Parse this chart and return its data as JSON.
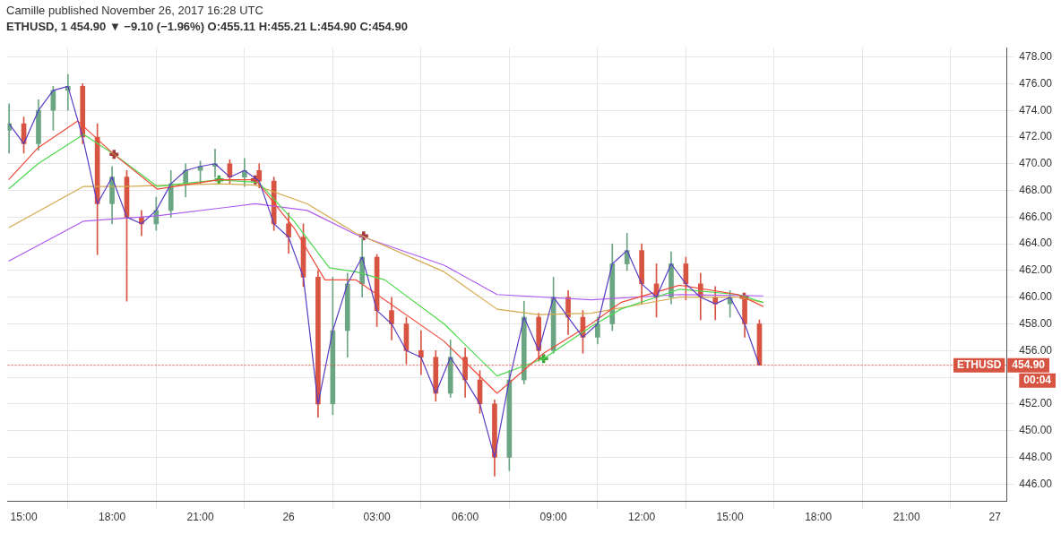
{
  "chart_data": {
    "type": "candlestick",
    "title": "Camille published November 26, 2017 16:28 UTC",
    "subtitle": "ETHUSD, 1  454.90 ▼ −9.10 (−1.96%) O:455.11 H:455.21 L:454.90 C:454.90",
    "x": [
      "2017-11-25T14:30",
      "2017-11-25T15:00",
      "2017-11-25T15:30",
      "2017-11-25T16:00",
      "2017-11-25T16:30",
      "2017-11-25T17:00",
      "2017-11-25T17:30",
      "2017-11-25T18:00",
      "2017-11-25T18:30",
      "2017-11-25T19:00",
      "2017-11-25T19:30",
      "2017-11-25T20:00",
      "2017-11-25T20:30",
      "2017-11-25T21:00",
      "2017-11-25T21:30",
      "2017-11-25T22:00",
      "2017-11-25T22:30",
      "2017-11-25T23:00",
      "2017-11-25T23:30",
      "2017-11-26T00:00",
      "2017-11-26T00:30",
      "2017-11-26T01:00",
      "2017-11-26T01:30",
      "2017-11-26T02:00",
      "2017-11-26T02:30",
      "2017-11-26T03:00",
      "2017-11-26T03:30",
      "2017-11-26T04:00",
      "2017-11-26T04:30",
      "2017-11-26T05:00",
      "2017-11-26T05:30",
      "2017-11-26T06:00",
      "2017-11-26T06:30",
      "2017-11-26T07:00",
      "2017-11-26T07:30",
      "2017-11-26T08:00",
      "2017-11-26T08:30",
      "2017-11-26T09:00",
      "2017-11-26T09:30",
      "2017-11-26T10:00",
      "2017-11-26T10:30",
      "2017-11-26T11:00",
      "2017-11-26T11:30",
      "2017-11-26T12:00",
      "2017-11-26T12:30",
      "2017-11-26T13:00",
      "2017-11-26T13:30",
      "2017-11-26T14:00",
      "2017-11-26T14:30",
      "2017-11-26T15:00",
      "2017-11-26T15:30",
      "2017-11-26T16:00"
    ],
    "ohlc": [
      [
        472.5,
        474.5,
        470.8,
        473
      ],
      [
        473,
        473.5,
        470.8,
        471.5
      ],
      [
        471.5,
        474.8,
        471,
        474
      ],
      [
        474,
        475.8,
        472.5,
        475.5
      ],
      [
        475.5,
        476.7,
        474,
        475.8
      ],
      [
        475.8,
        476,
        471.5,
        472
      ],
      [
        472,
        473,
        463.2,
        467
      ],
      [
        467,
        469.8,
        465.5,
        469
      ],
      [
        469,
        469.5,
        459.7,
        466
      ],
      [
        466,
        466.5,
        464.6,
        465.5
      ],
      [
        465.5,
        467.5,
        465,
        466.5
      ],
      [
        466.5,
        469.5,
        466,
        468.5
      ],
      [
        468.5,
        470,
        467.5,
        469.5
      ],
      [
        469.5,
        470.2,
        468.5,
        469.8
      ],
      [
        469.8,
        471.1,
        469,
        470
      ],
      [
        470,
        470.3,
        468.5,
        469
      ],
      [
        469,
        470.4,
        468.3,
        469.5
      ],
      [
        469.5,
        470,
        468.2,
        468.7
      ],
      [
        468.7,
        469,
        465,
        465.5
      ],
      [
        465.5,
        466.3,
        463.3,
        464.5
      ],
      [
        464.5,
        465.5,
        460.8,
        461.5
      ],
      [
        461.5,
        462,
        451,
        452
      ],
      [
        452,
        461.5,
        451.2,
        457.5
      ],
      [
        457.5,
        461.8,
        455.5,
        461
      ],
      [
        461,
        464.4,
        460,
        463
      ],
      [
        463,
        463.2,
        457.8,
        459
      ],
      [
        459,
        460,
        456.8,
        458
      ],
      [
        458,
        458.5,
        455,
        456
      ],
      [
        456,
        457.5,
        454.2,
        455.5
      ],
      [
        455.5,
        456,
        452.2,
        452.8
      ],
      [
        452.8,
        456.8,
        452.5,
        455.5
      ],
      [
        455.5,
        456.2,
        452.5,
        453.8
      ],
      [
        453.8,
        454.5,
        451.3,
        452
      ],
      [
        452,
        452.3,
        446.6,
        448
      ],
      [
        448,
        454.5,
        447,
        453.8
      ],
      [
        453.8,
        459.7,
        453.5,
        458.5
      ],
      [
        458.5,
        458.8,
        455.2,
        456
      ],
      [
        456,
        461.5,
        455.8,
        460
      ],
      [
        460,
        460.5,
        457.2,
        458.5
      ],
      [
        458.5,
        459,
        455.8,
        457
      ],
      [
        457,
        458.5,
        456.5,
        458
      ],
      [
        458,
        464,
        457.5,
        462.5
      ],
      [
        462.5,
        464.8,
        462,
        463.5
      ],
      [
        463.5,
        464,
        459.5,
        461
      ],
      [
        461,
        462.5,
        458.5,
        460
      ],
      [
        460,
        463.4,
        459.5,
        462.5
      ],
      [
        462.5,
        463,
        459.8,
        461
      ],
      [
        461,
        461.8,
        458.3,
        460
      ],
      [
        460,
        460.8,
        458.3,
        459.5
      ],
      [
        459.5,
        460.5,
        458.5,
        460
      ],
      [
        460,
        460.3,
        457,
        458
      ],
      [
        458,
        458.3,
        454.9,
        454.9
      ]
    ],
    "colors": [
      "#6ba583",
      "#d75442",
      "#6ba583",
      "#6ba583",
      "#6ba583",
      "#d75442",
      "#d75442",
      "#6ba583",
      "#d75442",
      "#d75442",
      "#6ba583",
      "#6ba583",
      "#6ba583",
      "#6ba583",
      "#6ba583",
      "#d75442",
      "#6ba583",
      "#d75442",
      "#d75442",
      "#d75442",
      "#d75442",
      "#d75442",
      "#6ba583",
      "#6ba583",
      "#6ba583",
      "#d75442",
      "#d75442",
      "#d75442",
      "#d75442",
      "#d75442",
      "#6ba583",
      "#d75442",
      "#d75442",
      "#d75442",
      "#6ba583",
      "#6ba583",
      "#d75442",
      "#6ba583",
      "#d75442",
      "#d75442",
      "#6ba583",
      "#6ba583",
      "#6ba583",
      "#d75442",
      "#d75442",
      "#6ba583",
      "#d75442",
      "#d75442",
      "#d75442",
      "#6ba583",
      "#d75442",
      "#d75442"
    ],
    "series": [
      {
        "type": "line",
        "color": "#5b3cc4",
        "x": [
          "2017-11-25T14:30",
          "2017-11-25T15:00",
          "2017-11-25T15:30",
          "2017-11-25T16:00",
          "2017-11-25T16:30",
          "2017-11-25T17:00",
          "2017-11-25T17:30",
          "2017-11-25T18:00",
          "2017-11-25T18:30",
          "2017-11-25T19:00",
          "2017-11-25T19:30",
          "2017-11-25T20:00",
          "2017-11-25T20:30",
          "2017-11-25T21:00",
          "2017-11-25T21:30",
          "2017-11-25T22:00",
          "2017-11-25T22:30",
          "2017-11-25T23:00",
          "2017-11-25T23:30",
          "2017-11-26T00:00",
          "2017-11-26T00:30",
          "2017-11-26T01:00",
          "2017-11-26T01:30",
          "2017-11-26T02:00",
          "2017-11-26T02:30",
          "2017-11-26T03:00",
          "2017-11-26T03:30",
          "2017-11-26T04:00",
          "2017-11-26T04:30",
          "2017-11-26T05:00",
          "2017-11-26T05:30",
          "2017-11-26T06:00",
          "2017-11-26T06:30",
          "2017-11-26T07:00",
          "2017-11-26T07:30",
          "2017-11-26T08:00",
          "2017-11-26T08:30",
          "2017-11-26T09:00",
          "2017-11-26T09:30",
          "2017-11-26T10:00",
          "2017-11-26T10:30",
          "2017-11-26T11:00",
          "2017-11-26T11:30",
          "2017-11-26T12:00",
          "2017-11-26T12:30",
          "2017-11-26T13:00",
          "2017-11-26T13:30",
          "2017-11-26T14:00",
          "2017-11-26T14:30",
          "2017-11-26T15:00",
          "2017-11-26T15:30",
          "2017-11-26T16:00"
        ],
        "values": [
          473,
          471.5,
          474,
          475.5,
          475.8,
          472,
          467,
          469,
          466,
          465.5,
          466.5,
          468.5,
          469.5,
          469.8,
          470,
          469,
          469.5,
          468.7,
          465.5,
          464.5,
          461.5,
          452,
          457.5,
          461,
          463,
          459,
          458,
          456,
          455.5,
          452.8,
          455.5,
          453.8,
          452,
          448,
          453.8,
          458.5,
          456,
          460,
          458.5,
          457,
          458,
          462.5,
          463.5,
          461,
          460,
          462.5,
          461,
          460,
          459.5,
          460,
          458,
          454.9
        ]
      },
      {
        "type": "line",
        "color": "#f04a3a",
        "x": [
          "2017-11-25T14:29",
          "2017-11-25T15:29",
          "2017-11-25T16:50",
          "2017-11-25T18:04",
          "2017-11-25T19:32",
          "2017-11-25T21:38",
          "2017-11-25T22:52",
          "2017-11-26T00:11",
          "2017-11-26T01:14",
          "2017-11-26T02:17",
          "2017-11-26T05:17",
          "2017-11-26T07:05",
          "2017-11-26T08:40",
          "2017-11-26T10:17",
          "2017-11-26T11:17",
          "2017-11-26T13:17",
          "2017-11-26T15:16",
          "2017-11-26T16:08"
        ],
        "values": [
          468.8,
          471.2,
          473.2,
          470.7,
          468.1,
          468.8,
          468.8,
          465.2,
          461.3,
          461.3,
          456.7,
          452.8,
          455.8,
          458,
          459.6,
          460.9,
          460.2,
          459.3
        ]
      },
      {
        "type": "line",
        "color": "#4cd84c",
        "x": [
          "2017-11-25T14:29",
          "2017-11-25T15:29",
          "2017-11-25T17:02",
          "2017-11-25T18:04",
          "2017-11-25T19:32",
          "2017-11-25T21:38",
          "2017-11-25T22:59",
          "2017-11-26T00:11",
          "2017-11-26T01:23",
          "2017-11-26T02:17",
          "2017-11-26T03:16",
          "2017-11-26T05:17",
          "2017-11-26T07:05",
          "2017-11-26T08:40",
          "2017-11-26T10:17",
          "2017-11-26T11:17",
          "2017-11-26T13:17",
          "2017-11-26T15:16",
          "2017-11-26T16:08"
        ],
        "values": [
          468.1,
          470,
          472.2,
          470.7,
          468.3,
          468.8,
          468.6,
          465.7,
          462.2,
          461.9,
          461.3,
          458,
          454.1,
          455.4,
          457.8,
          459.1,
          460.6,
          460.2,
          459.6
        ]
      },
      {
        "type": "line",
        "color": "#d4a94e",
        "x": [
          "2017-11-25T14:29",
          "2017-11-25T17:02",
          "2017-11-25T18:29",
          "2017-11-25T21:38",
          "2017-11-25T22:52",
          "2017-11-26T00:38",
          "2017-11-26T02:17",
          "2017-11-26T05:17",
          "2017-11-26T07:05",
          "2017-11-26T08:29",
          "2017-11-26T10:17",
          "2017-11-26T13:17",
          "2017-11-26T15:16",
          "2017-11-26T16:08"
        ],
        "values": [
          465.2,
          468.3,
          468.3,
          468.5,
          468.4,
          467,
          464.8,
          461.9,
          459.1,
          458.7,
          458.8,
          460,
          460,
          459.6
        ]
      },
      {
        "type": "line",
        "color": "#b05cf0",
        "x": [
          "2017-11-25T14:29",
          "2017-11-25T17:02",
          "2017-11-25T19:32",
          "2017-11-25T22:52",
          "2017-11-26T00:38",
          "2017-11-26T02:17",
          "2017-11-26T05:17",
          "2017-11-26T07:05",
          "2017-11-26T10:17",
          "2017-11-26T13:17",
          "2017-11-26T16:08"
        ],
        "values": [
          462.7,
          465.7,
          466.1,
          467,
          466.5,
          464.7,
          462.4,
          460.2,
          459.8,
          460.2,
          460.1
        ]
      },
      {
        "type": "scatter",
        "marker": "cross",
        "x": [
          "2017-11-25T18:04",
          "2017-11-25T21:38",
          "2017-11-25T22:52",
          "2017-11-26T02:33",
          "2017-11-26T08:40",
          "2017-11-26T15:29"
        ],
        "values": [
          470.7,
          468.8,
          468.8,
          464.6,
          455.4,
          460
        ],
        "colors": [
          "#a33a3a",
          "#3fa83f",
          "#a33a3a",
          "#a33a3a",
          "#3fa83f",
          "#a33a3a"
        ]
      }
    ],
    "xlim": [
      "2017-11-25T14:27",
      "2017-11-27T00:24"
    ],
    "xticks": [
      {
        "value": "2017-11-25T15:00",
        "label": "15:00"
      },
      {
        "value": "2017-11-25T18:00",
        "label": "18:00"
      },
      {
        "value": "2017-11-25T21:00",
        "label": "21:00"
      },
      {
        "value": "2017-11-26T00:00",
        "label": "26"
      },
      {
        "value": "2017-11-26T03:00",
        "label": "03:00"
      },
      {
        "value": "2017-11-26T06:00",
        "label": "06:00"
      },
      {
        "value": "2017-11-26T09:00",
        "label": "09:00"
      },
      {
        "value": "2017-11-26T12:00",
        "label": "12:00"
      },
      {
        "value": "2017-11-26T15:00",
        "label": "15:00"
      },
      {
        "value": "2017-11-26T18:00",
        "label": "18:00"
      },
      {
        "value": "2017-11-26T21:00",
        "label": "21:00"
      },
      {
        "value": "2017-11-27T00:00",
        "label": "27"
      }
    ],
    "ylim": [
      444.7,
      478.7
    ],
    "yticks": [
      {
        "value": 446,
        "label": "446.00"
      },
      {
        "value": 448,
        "label": "448.00"
      },
      {
        "value": 450,
        "label": "450.00"
      },
      {
        "value": 452,
        "label": "452.00"
      },
      {
        "value": 454,
        "label": null
      },
      {
        "value": 456,
        "label": "456.00"
      },
      {
        "value": 458,
        "label": "458.00"
      },
      {
        "value": 460,
        "label": "460.00"
      },
      {
        "value": 462,
        "label": "462.00"
      },
      {
        "value": 464,
        "label": "464.00"
      },
      {
        "value": 466,
        "label": "466.00"
      },
      {
        "value": 468,
        "label": "468.00"
      },
      {
        "value": 470,
        "label": "470.00"
      },
      {
        "value": 472,
        "label": "472.00"
      },
      {
        "value": 474,
        "label": "474.00"
      },
      {
        "value": 476,
        "label": "476.00"
      },
      {
        "value": 478,
        "label": "478.00"
      }
    ],
    "ref_lines": [
      {
        "axis": "y",
        "value": 454.9,
        "label": "ETHUSD",
        "color": "#d75442",
        "line_style": "dotted"
      }
    ],
    "annotations": [
      "454.90",
      "00:04"
    ],
    "grid": true,
    "legend": false
  }
}
